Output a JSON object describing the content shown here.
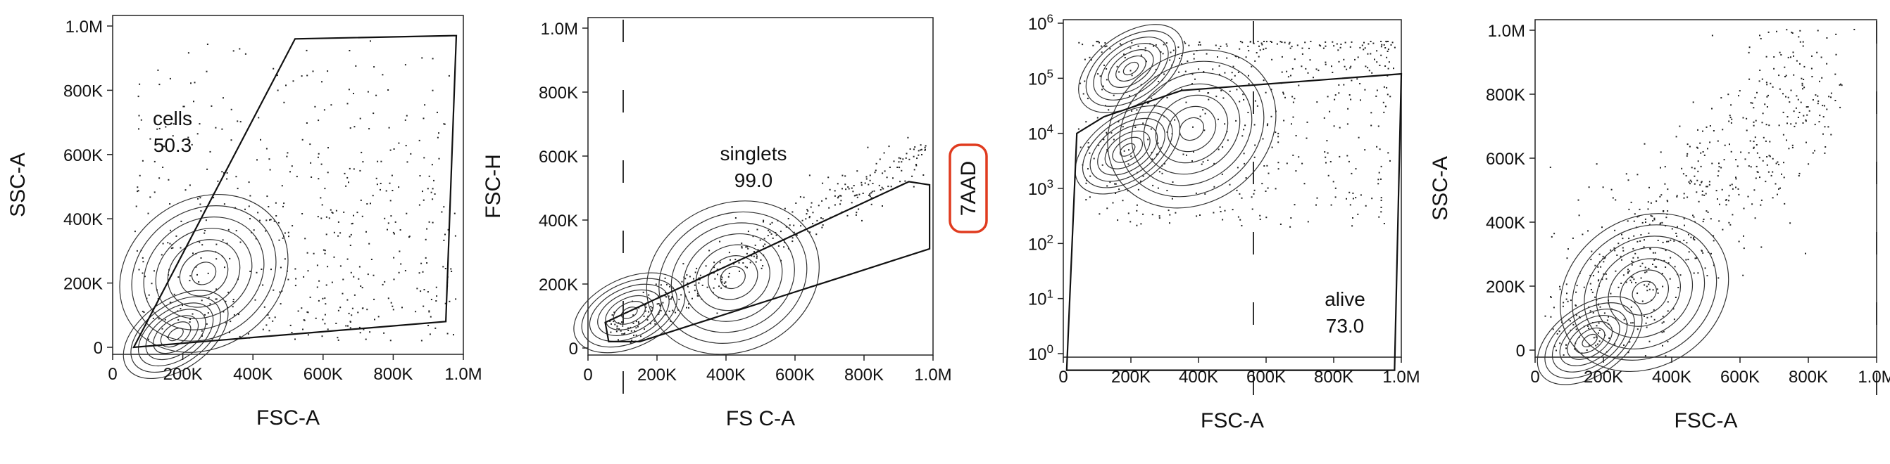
{
  "chart_data": [
    {
      "type": "contour",
      "xlabel": "FSC-A",
      "ylabel": "SSC-A",
      "x_ticks": [
        "0",
        "200K",
        "400K",
        "600K",
        "800K",
        "1.0M"
      ],
      "y_ticks": [
        "0",
        "200K",
        "400K",
        "600K",
        "800K",
        "1.0M"
      ],
      "xlim": [
        0,
        1000000
      ],
      "ylim": [
        0,
        1000000
      ],
      "gate": {
        "name": "cells",
        "value": "50.3",
        "points": [
          [
            60000,
            0
          ],
          [
            520000,
            960000
          ],
          [
            970000,
            970000
          ],
          [
            980000,
            970000
          ],
          [
            950000,
            80000
          ]
        ]
      },
      "clusters": [
        {
          "x": 180000,
          "y": 40000
        },
        {
          "x": 260000,
          "y": 230000
        }
      ]
    },
    {
      "type": "contour",
      "xlabel": "FS C-A",
      "ylabel": "FSC-H",
      "x_ticks": [
        "0",
        "200K",
        "400K",
        "600K",
        "800K",
        "1.0M"
      ],
      "y_ticks": [
        "0",
        "200K",
        "400K",
        "600K",
        "800K",
        "1.0M"
      ],
      "xlim": [
        0,
        1000000
      ],
      "ylim": [
        0,
        1000000
      ],
      "gate": {
        "name": "singlets",
        "value": "99.0",
        "points": [
          [
            50000,
            80000
          ],
          [
            90000,
            100000
          ],
          [
            930000,
            520000
          ],
          [
            990000,
            510000
          ],
          [
            990000,
            310000
          ],
          [
            730000,
            220000
          ],
          [
            150000,
            20000
          ],
          [
            60000,
            20000
          ]
        ]
      },
      "clusters": [
        {
          "x": 120000,
          "y": 110000
        },
        {
          "x": 420000,
          "y": 220000
        }
      ]
    },
    {
      "type": "contour",
      "xlabel": "FSC-A",
      "ylabel": "7AAD",
      "ylabel_boxed": true,
      "y_scale": "log",
      "x_ticks": [
        "0",
        "200K",
        "400K",
        "600K",
        "800K",
        "1.0M"
      ],
      "y_ticks": [
        "10^0",
        "10^1",
        "10^2",
        "10^3",
        "10^4",
        "10^5",
        "10^6"
      ],
      "xlim": [
        0,
        1000000
      ],
      "ylim": [
        1,
        1000000
      ],
      "gate": {
        "name": "alive",
        "value": "73.0",
        "points": [
          [
            10000,
            0.5
          ],
          [
            40000,
            10000
          ],
          [
            120000,
            20000
          ],
          [
            350000,
            60000
          ],
          [
            1000000,
            120000
          ],
          [
            980000,
            0.5
          ]
        ]
      },
      "clusters": [
        {
          "x": 190000,
          "y": 5000
        },
        {
          "x": 380000,
          "y": 12000
        },
        {
          "x": 200000,
          "y": 150000
        }
      ]
    },
    {
      "type": "contour",
      "xlabel": "FSC-A",
      "ylabel": "SSC-A",
      "x_ticks": [
        "0",
        "200K",
        "400K",
        "600K",
        "800K",
        "1.0M"
      ],
      "y_ticks": [
        "0",
        "200K",
        "400K",
        "600K",
        "800K",
        "1.0M"
      ],
      "xlim": [
        0,
        1000000
      ],
      "ylim": [
        0,
        1000000
      ],
      "clusters": [
        {
          "x": 160000,
          "y": 30000
        },
        {
          "x": 320000,
          "y": 180000
        }
      ]
    }
  ]
}
